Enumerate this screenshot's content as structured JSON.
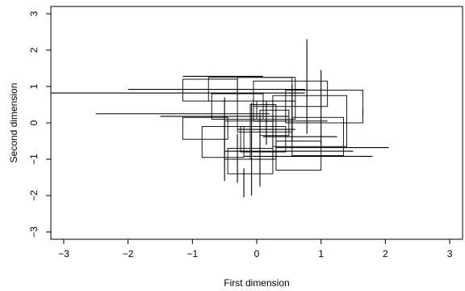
{
  "chart_data": {
    "type": "other",
    "xlabel": "First dimension",
    "ylabel": "Second dimension",
    "xlim": [
      -3.2,
      3.2
    ],
    "ylim": [
      -3.2,
      3.2
    ],
    "x_ticks": [
      -3,
      -2,
      -1,
      0,
      1,
      2,
      3
    ],
    "y_ticks": [
      -3,
      -2,
      -1,
      0,
      1,
      2,
      3
    ],
    "x_tick_labels": [
      "−3",
      "−2",
      "−1",
      "0",
      "1",
      "2",
      "3"
    ],
    "y_tick_labels": [
      "−3",
      "−2",
      "−1",
      "0",
      "1",
      "2",
      "3"
    ],
    "rectangles": [
      {
        "x": [
          -1.15,
          -0.3
        ],
        "y": [
          0.6,
          1.2
        ]
      },
      {
        "x": [
          -0.75,
          0.6
        ],
        "y": [
          0.6,
          1.25
        ]
      },
      {
        "x": [
          -0.3,
          0.55
        ],
        "y": [
          -0.25,
          1.25
        ]
      },
      {
        "x": [
          -0.05,
          1.1
        ],
        "y": [
          0.45,
          1.15
        ]
      },
      {
        "x": [
          0.0,
          0.6
        ],
        "y": [
          0.1,
          0.6
        ]
      },
      {
        "x": [
          0.25,
          1.4
        ],
        "y": [
          -0.65,
          0.75
        ]
      },
      {
        "x": [
          0.45,
          1.65
        ],
        "y": [
          0.0,
          0.9
        ]
      },
      {
        "x": [
          0.55,
          1.35
        ],
        "y": [
          -0.9,
          0.15
        ]
      },
      {
        "x": [
          -1.15,
          -0.45
        ],
        "y": [
          -0.45,
          0.15
        ]
      },
      {
        "x": [
          -0.85,
          -0.2
        ],
        "y": [
          -0.95,
          -0.1
        ]
      },
      {
        "x": [
          -0.5,
          0.25
        ],
        "y": [
          -1.0,
          0.05
        ]
      },
      {
        "x": [
          -0.1,
          0.3
        ],
        "y": [
          -1.0,
          0.5
        ]
      },
      {
        "x": [
          0.05,
          0.5
        ],
        "y": [
          -0.35,
          0.35
        ]
      },
      {
        "x": [
          -0.05,
          0.25
        ],
        "y": [
          0.05,
          0.6
        ]
      },
      {
        "x": [
          0.3,
          1.0
        ],
        "y": [
          -1.3,
          -0.5
        ]
      },
      {
        "x": [
          -0.45,
          0.25
        ],
        "y": [
          -1.4,
          -0.7
        ]
      },
      {
        "x": [
          -0.7,
          0.1
        ],
        "y": [
          0.1,
          0.8
        ]
      },
      {
        "x": [
          -0.25,
          0.45
        ],
        "y": [
          -0.8,
          -0.1
        ]
      }
    ],
    "horizontal_segments": [
      {
        "y": 0.82,
        "x": [
          -3.2,
          0.75
        ]
      },
      {
        "y": 0.92,
        "x": [
          -2.0,
          0.75
        ]
      },
      {
        "y": 0.25,
        "x": [
          -2.5,
          0.2
        ]
      },
      {
        "y": 0.18,
        "x": [
          -1.5,
          0.5
        ]
      },
      {
        "y": 1.28,
        "x": [
          -1.15,
          0.1
        ]
      },
      {
        "y": -0.68,
        "x": [
          0.3,
          2.05
        ]
      },
      {
        "y": -0.92,
        "x": [
          -0.2,
          1.8
        ]
      },
      {
        "y": -0.78,
        "x": [
          -0.5,
          1.5
        ]
      },
      {
        "y": -0.38,
        "x": [
          0.1,
          1.25
        ]
      },
      {
        "y": 0.05,
        "x": [
          0.0,
          1.1
        ]
      },
      {
        "y": -0.18,
        "x": [
          -0.3,
          0.6
        ]
      }
    ],
    "vertical_segments": [
      {
        "x": 0.78,
        "y": [
          -0.3,
          2.3
        ]
      },
      {
        "x": -0.08,
        "y": [
          -2.0,
          0.55
        ]
      },
      {
        "x": 1.0,
        "y": [
          -0.6,
          1.45
        ]
      },
      {
        "x": -0.5,
        "y": [
          -1.6,
          0.7
        ]
      },
      {
        "x": 0.05,
        "y": [
          -1.75,
          0.2
        ]
      },
      {
        "x": -0.3,
        "y": [
          -1.65,
          -0.3
        ]
      },
      {
        "x": 0.55,
        "y": [
          -0.5,
          1.05
        ]
      },
      {
        "x": -0.2,
        "y": [
          -2.05,
          -1.25
        ]
      },
      {
        "x": 0.15,
        "y": [
          -0.6,
          0.6
        ]
      },
      {
        "x": 1.65,
        "y": [
          0.2,
          0.35
        ]
      }
    ],
    "grid": false,
    "legend": "none"
  }
}
